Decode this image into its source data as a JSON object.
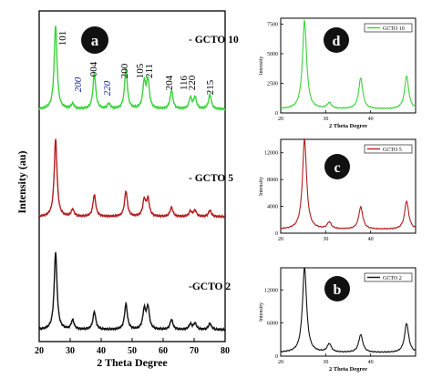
{
  "chart_data": [
    {
      "panel": "main",
      "type": "line",
      "xlabel": "2 Theta Degree",
      "ylabel": "Intensity (au)",
      "xlim": [
        20,
        80
      ],
      "xticks": [
        20,
        30,
        40,
        50,
        60,
        70,
        80
      ],
      "badge": "a",
      "series": [
        {
          "name": "- GCTO 10",
          "color": "#3cd23c",
          "peaks": [
            [
              25.3,
              1.0
            ],
            [
              30.8,
              0.06
            ],
            [
              37.8,
              0.42
            ],
            [
              42.5,
              0.06
            ],
            [
              48.0,
              0.47
            ],
            [
              53.9,
              0.31
            ],
            [
              55.1,
              0.33
            ],
            [
              62.7,
              0.22
            ],
            [
              68.8,
              0.13
            ],
            [
              70.3,
              0.14
            ],
            [
              75.1,
              0.17
            ]
          ]
        },
        {
          "name": "- GCTO 5",
          "color": "#b41e1e",
          "peaks": [
            [
              25.3,
              1.0
            ],
            [
              30.8,
              0.09
            ],
            [
              37.8,
              0.28
            ],
            [
              48.0,
              0.33
            ],
            [
              53.9,
              0.21
            ],
            [
              55.1,
              0.22
            ],
            [
              62.7,
              0.12
            ],
            [
              68.8,
              0.07
            ],
            [
              70.3,
              0.08
            ],
            [
              75.1,
              0.08
            ]
          ]
        },
        {
          "name": "-GCTO 2",
          "color": "#111111",
          "peaks": [
            [
              25.3,
              1.0
            ],
            [
              30.8,
              0.12
            ],
            [
              37.8,
              0.23
            ],
            [
              48.0,
              0.33
            ],
            [
              53.9,
              0.25
            ],
            [
              55.1,
              0.28
            ],
            [
              62.7,
              0.13
            ],
            [
              68.8,
              0.07
            ],
            [
              70.3,
              0.08
            ],
            [
              75.1,
              0.08
            ]
          ]
        }
      ],
      "annotations": [
        {
          "label": "101",
          "italic": false,
          "x": 25.3
        },
        {
          "label": "200",
          "italic": true,
          "x": 30.8
        },
        {
          "label": "004",
          "italic": false,
          "x": 37.8
        },
        {
          "label": "220",
          "italic": true,
          "x": 42.5
        },
        {
          "label": "200",
          "italic": false,
          "x": 48.0
        },
        {
          "label": "105",
          "italic": false,
          "x": 53.9
        },
        {
          "label": "211",
          "italic": false,
          "x": 55.1
        },
        {
          "label": "204",
          "italic": false,
          "x": 62.7
        },
        {
          "label": "116",
          "italic": false,
          "x": 68.8
        },
        {
          "label": "220",
          "italic": false,
          "x": 70.3
        },
        {
          "label": "215",
          "italic": false,
          "x": 75.1
        }
      ]
    },
    {
      "panel": "d",
      "type": "line",
      "badge": "d",
      "xlabel": "2 Theta Degree",
      "ylabel": "Intensity",
      "xlim": [
        20,
        50
      ],
      "xticks": [
        20,
        30,
        40
      ],
      "ylim": [
        0,
        8000
      ],
      "yticks": [
        0,
        2500,
        5000,
        7500
      ],
      "series": [
        {
          "name": "GCTO 10",
          "color": "#3cd23c",
          "peaks": [
            [
              25.3,
              7500
            ],
            [
              30.8,
              500
            ],
            [
              37.8,
              2600
            ],
            [
              48.0,
              2800
            ]
          ]
        }
      ]
    },
    {
      "panel": "c",
      "type": "line",
      "badge": "c",
      "xlabel": "",
      "ylabel": "Intensity",
      "xlim": [
        20,
        50
      ],
      "xticks": [
        20,
        30,
        40
      ],
      "ylim": [
        0,
        14000
      ],
      "yticks": [
        0,
        4000,
        8000,
        12000
      ],
      "series": [
        {
          "name": "GCTO 5",
          "color": "#b41e1e",
          "peaks": [
            [
              25.3,
              13500
            ],
            [
              30.8,
              1000
            ],
            [
              37.8,
              3300
            ],
            [
              48.0,
              4200
            ]
          ]
        }
      ]
    },
    {
      "panel": "b",
      "type": "line",
      "badge": "b",
      "xlabel": "2 Theta Degree",
      "ylabel": "Intensity",
      "xlim": [
        20,
        50
      ],
      "xticks": [
        20,
        30,
        40
      ],
      "ylim": [
        0,
        16000
      ],
      "yticks": [
        0,
        6000,
        12000
      ],
      "series": [
        {
          "name": "GCTO 2",
          "color": "#111111",
          "peaks": [
            [
              25.3,
              15500
            ],
            [
              30.8,
              1500
            ],
            [
              37.8,
              3200
            ],
            [
              48.0,
              5300
            ]
          ]
        }
      ]
    }
  ]
}
